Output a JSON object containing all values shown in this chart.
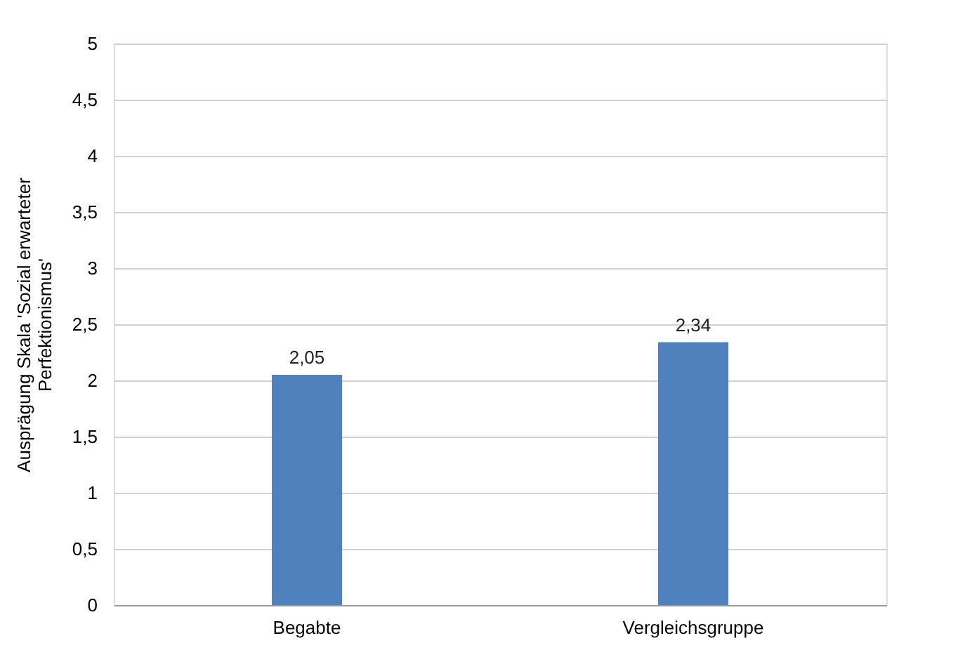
{
  "chart_data": {
    "type": "bar",
    "categories": [
      "Begabte",
      "Vergleichsgruppe"
    ],
    "values": [
      2.05,
      2.34
    ],
    "value_labels": [
      "2,05",
      "2,34"
    ],
    "color": "#4f81bd",
    "ylabel": "Ausprägung Skala 'Sozial erwarteter\nPerfektionismus'",
    "ylim": [
      0,
      5
    ],
    "yticks": [
      0,
      {
        "value": 0.5,
        "label": "0,5"
      },
      1,
      {
        "value": 1.5,
        "label": "1,5"
      },
      2,
      {
        "value": 2.5,
        "label": "2,5"
      },
      3,
      {
        "value": 3.5,
        "label": "3,5"
      },
      4,
      {
        "value": 4.5,
        "label": "4,5"
      },
      5
    ],
    "grid": "y"
  }
}
